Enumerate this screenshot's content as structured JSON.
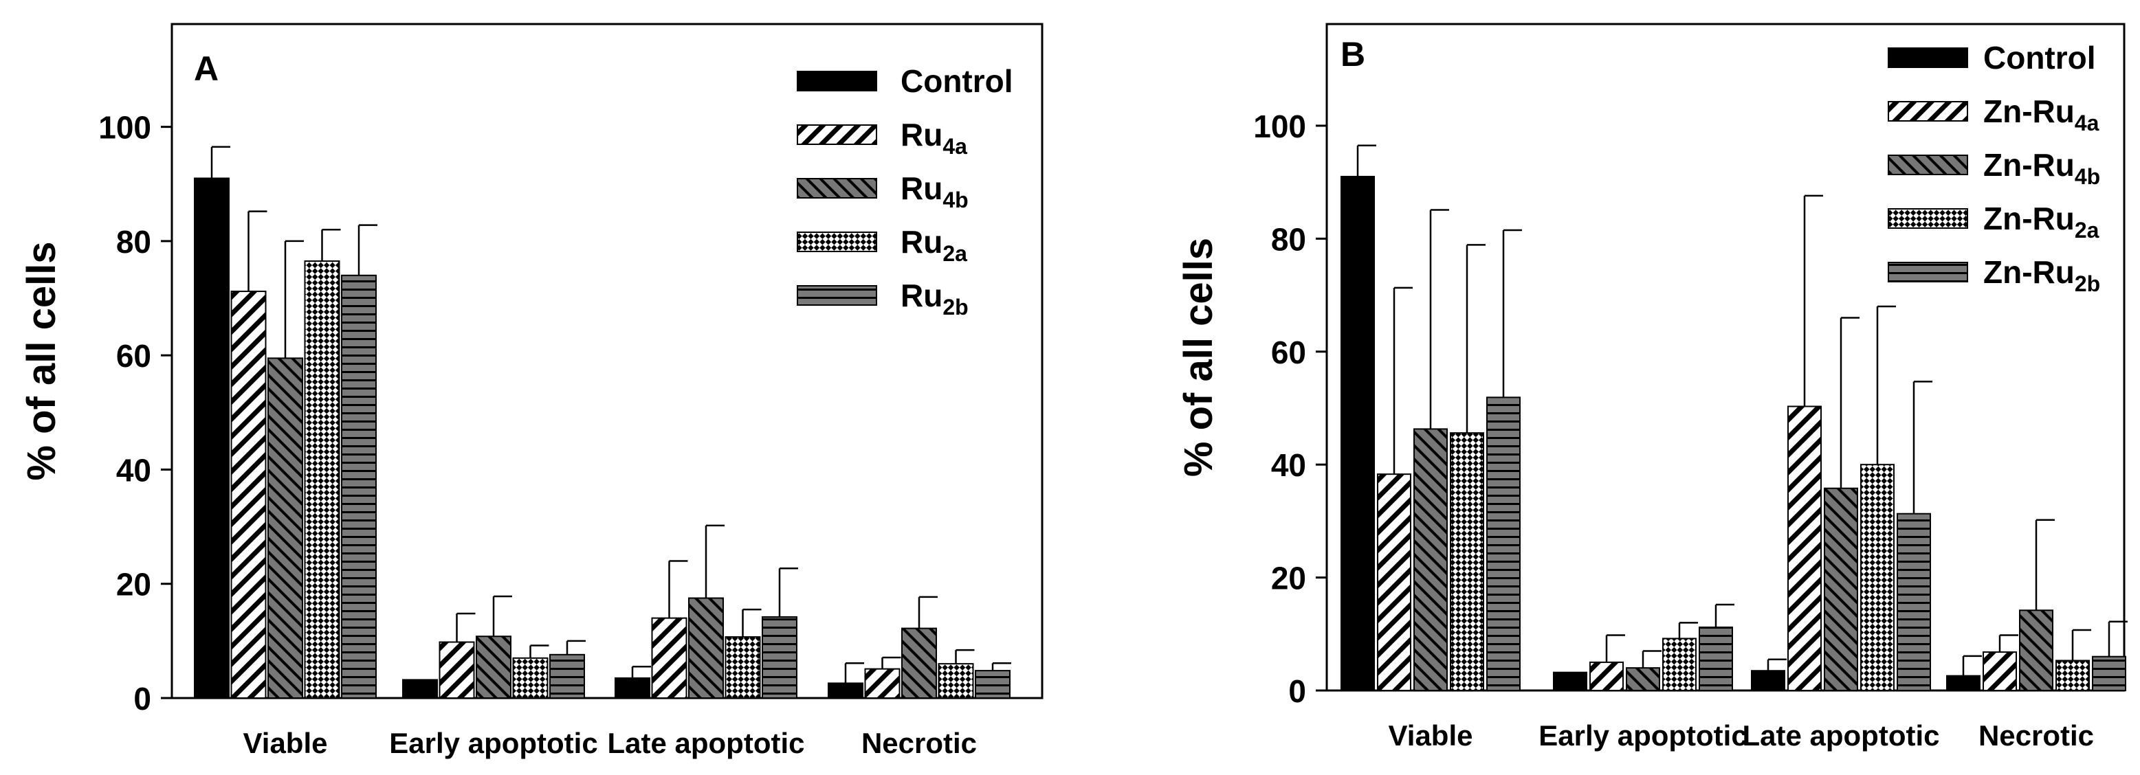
{
  "chart_data": [
    {
      "panel": "A",
      "type": "bar",
      "ylabel": "% of all cells",
      "ylim": [
        0,
        118
      ],
      "yticks": [
        0,
        20,
        40,
        60,
        80,
        100
      ],
      "grid": false,
      "legend_position": "top-right",
      "categories": [
        "Viable",
        "Early apoptotic",
        "Late apoptotic",
        "Necrotic"
      ],
      "series": [
        {
          "name": "Control",
          "sub": "",
          "pattern": "solid",
          "values": [
            91,
            3.2,
            3.5,
            2.6
          ],
          "errors": [
            5.5,
            0,
            2,
            3.5
          ]
        },
        {
          "name": "Ru",
          "sub": "4a",
          "pattern": "fwd",
          "values": [
            71.2,
            9.8,
            14,
            5.1
          ],
          "errors": [
            14,
            5,
            10,
            2
          ]
        },
        {
          "name": "Ru",
          "sub": "4b",
          "pattern": "back",
          "values": [
            59.5,
            10.8,
            17.5,
            12.2
          ],
          "errors": [
            20.5,
            7,
            12.7,
            5.5
          ]
        },
        {
          "name": "Ru",
          "sub": "2a",
          "pattern": "check",
          "values": [
            76.5,
            7,
            10.7,
            6
          ],
          "errors": [
            5.5,
            2.2,
            4.8,
            2.4
          ]
        },
        {
          "name": "Ru",
          "sub": "2b",
          "pattern": "horiz",
          "values": [
            74,
            7.6,
            14.2,
            4.8
          ],
          "errors": [
            8.8,
            2.4,
            8.5,
            1.3
          ]
        }
      ]
    },
    {
      "panel": "B",
      "type": "bar",
      "ylabel": "% of all cells",
      "ylim": [
        0,
        118
      ],
      "yticks": [
        0,
        20,
        40,
        60,
        80,
        100
      ],
      "grid": false,
      "legend_position": "top-right",
      "categories": [
        "Viable",
        "Early apoptotic",
        "Late apoptotic",
        "Necrotic"
      ],
      "series": [
        {
          "name": "Control",
          "sub": "",
          "pattern": "solid",
          "values": [
            91,
            3.2,
            3.5,
            2.6
          ],
          "errors": [
            5.5,
            0,
            2,
            3.5
          ]
        },
        {
          "name": "Zn-Ru",
          "sub": "4a",
          "pattern": "fwd",
          "values": [
            38.3,
            5,
            50.3,
            6.8
          ],
          "errors": [
            33,
            4.8,
            37.3,
            3
          ]
        },
        {
          "name": "Zn-Ru",
          "sub": "4b",
          "pattern": "back",
          "values": [
            46.3,
            4,
            35.8,
            14.2
          ],
          "errors": [
            38.8,
            3,
            30.2,
            16
          ]
        },
        {
          "name": "Zn-Ru",
          "sub": "2a",
          "pattern": "check",
          "values": [
            45.6,
            9.2,
            40,
            5.3
          ],
          "errors": [
            33.3,
            2.8,
            28,
            5.4
          ]
        },
        {
          "name": "Zn-Ru",
          "sub": "2b",
          "pattern": "horiz",
          "values": [
            51.9,
            11.2,
            31.3,
            6
          ],
          "errors": [
            29.6,
            4,
            23.4,
            6.2
          ]
        }
      ]
    }
  ]
}
